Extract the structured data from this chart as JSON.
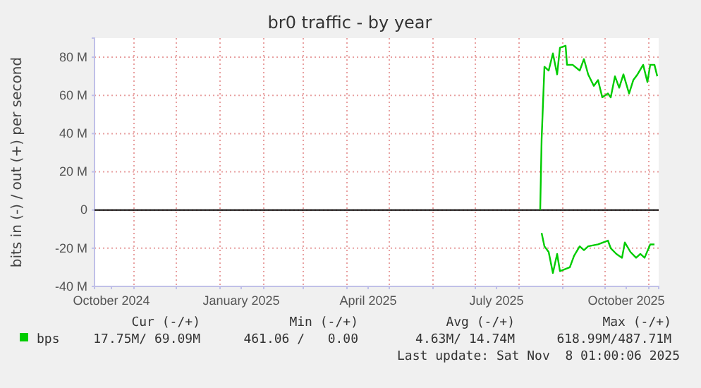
{
  "chart_data": {
    "type": "line",
    "title": "br0 traffic - by year",
    "ylabel": "bits in (-) / out (+) per second",
    "xlim": [
      "2024-10-04",
      "2025-11-08"
    ],
    "xticks": [
      {
        "value": "2024-10-16",
        "label": "October 2024"
      },
      {
        "value": "2025-01-16",
        "label": "January 2025"
      },
      {
        "value": "2025-04-16",
        "label": "April 2025"
      },
      {
        "value": "2025-07-16",
        "label": "July 2025"
      },
      {
        "value": "2025-10-16",
        "label": "October 2025"
      },
      {
        "value": "2024-11-01",
        "label": null
      },
      {
        "value": "2024-12-01",
        "label": null
      },
      {
        "value": "2025-01-01",
        "label": null
      },
      {
        "value": "2025-02-01",
        "label": null
      },
      {
        "value": "2025-03-01",
        "label": null
      },
      {
        "value": "2025-04-01",
        "label": null
      },
      {
        "value": "2025-05-01",
        "label": null
      },
      {
        "value": "2025-06-01",
        "label": null
      },
      {
        "value": "2025-07-01",
        "label": null
      },
      {
        "value": "2025-08-01",
        "label": null
      },
      {
        "value": "2025-09-01",
        "label": null
      },
      {
        "value": "2025-10-01",
        "label": null
      },
      {
        "value": "2025-11-01",
        "label": null
      }
    ],
    "ylim": [
      -40,
      90
    ],
    "yticks": [
      {
        "value": -40,
        "label": "-40 M"
      },
      {
        "value": -20,
        "label": "-20 M"
      },
      0,
      {
        "value": 20,
        "label": "20 M"
      },
      {
        "value": 40,
        "label": "40 M"
      },
      {
        "value": 60,
        "label": "60 M"
      },
      {
        "value": 80,
        "label": "80 M"
      }
    ],
    "grid": true,
    "legend": "bottom",
    "ref_lines": [
      {
        "axis": "y",
        "value": 0,
        "label": null,
        "color": "#000000"
      }
    ],
    "series": [
      {
        "name": "bps",
        "color": "#00cc00",
        "x": [
          "2025-08-16",
          "2025-08-17",
          "2025-08-19",
          "2025-08-22",
          "2025-08-25",
          "2025-08-28",
          "2025-08-30",
          "2025-09-03",
          "2025-09-04",
          "2025-09-08",
          "2025-09-13",
          "2025-09-16",
          "2025-09-19",
          "2025-09-23",
          "2025-09-26",
          "2025-09-29",
          "2025-10-03",
          "2025-10-05",
          "2025-10-08",
          "2025-10-11",
          "2025-10-14",
          "2025-10-18",
          "2025-10-21",
          "2025-10-24",
          "2025-10-28",
          "2025-10-31",
          "2025-11-02",
          "2025-11-05",
          "2025-11-07"
        ],
        "values": [
          0,
          37,
          75,
          73,
          82,
          71,
          85,
          86,
          76,
          76,
          73,
          79,
          71,
          65,
          68,
          59,
          61,
          59,
          70,
          64,
          71,
          61,
          68,
          71,
          76,
          67,
          76,
          76,
          70
        ]
      },
      {
        "color": "#00cc00",
        "x": [
          "2025-08-17",
          "2025-08-19",
          "2025-08-22",
          "2025-08-25",
          "2025-08-28",
          "2025-08-30",
          "2025-09-06",
          "2025-09-09",
          "2025-09-13",
          "2025-09-16",
          "2025-09-19",
          "2025-09-26",
          "2025-10-03",
          "2025-10-05",
          "2025-10-09",
          "2025-10-13",
          "2025-10-15",
          "2025-10-19",
          "2025-10-23",
          "2025-10-26",
          "2025-10-29",
          "2025-11-02",
          "2025-11-05"
        ],
        "values": [
          -12,
          -19,
          -22,
          -33,
          -23,
          -32,
          -30,
          -24,
          -19,
          -21,
          -19,
          -18,
          -16,
          -20,
          -23,
          -25,
          -17,
          -22,
          -25,
          -23,
          -25,
          -18,
          -18
        ]
      }
    ],
    "annotations": [
      "Cur (-/+)",
      "Min (-/+)",
      "Avg (-/+)",
      "Max (-/+)",
      "17.75M/ 69.09M",
      "461.06 /   0.00",
      "4.63M/ 14.74M",
      "618.99M/487.71M",
      "Last update: Sat Nov  8 01:00:06 2025"
    ]
  }
}
